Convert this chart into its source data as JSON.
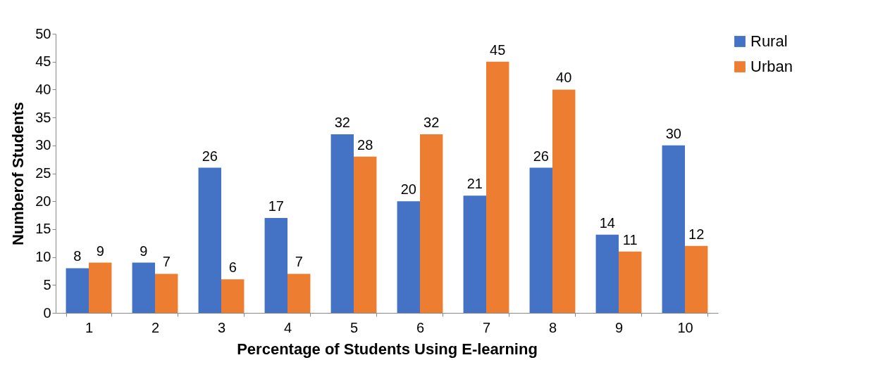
{
  "chart_data": {
    "type": "bar",
    "xlabel": "Percentage of Students Using E-learning",
    "ylabel": "Numberof Students",
    "categories": [
      "1",
      "2",
      "3",
      "4",
      "5",
      "6",
      "7",
      "8",
      "9",
      "10"
    ],
    "series": [
      {
        "name": "Rural",
        "color": "#4472c4",
        "values": [
          8,
          9,
          26,
          17,
          32,
          20,
          21,
          26,
          14,
          30
        ]
      },
      {
        "name": "Urban",
        "color": "#ed7d31",
        "values": [
          9,
          7,
          6,
          7,
          28,
          32,
          45,
          40,
          11,
          12
        ]
      }
    ],
    "ylim": [
      0,
      50
    ],
    "yticks": [
      0,
      5,
      10,
      15,
      20,
      25,
      30,
      35,
      40,
      45,
      50
    ],
    "grid": false,
    "legend": "right",
    "data_labels": true
  }
}
